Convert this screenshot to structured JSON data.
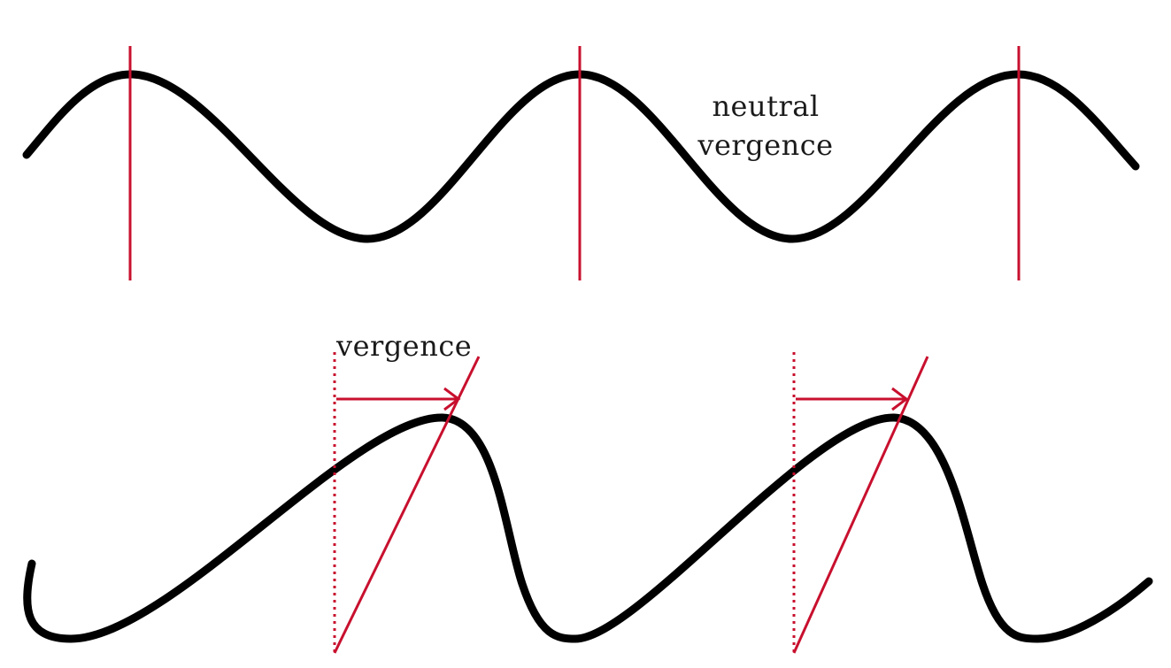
{
  "labels": {
    "neutral_line1": "neutral",
    "neutral_line2": "vergence",
    "vergence": "vergence"
  },
  "colors": {
    "wave": "#000000",
    "marker": "#c8102e",
    "text": "#1a1a1a",
    "background": "#ffffff"
  }
}
